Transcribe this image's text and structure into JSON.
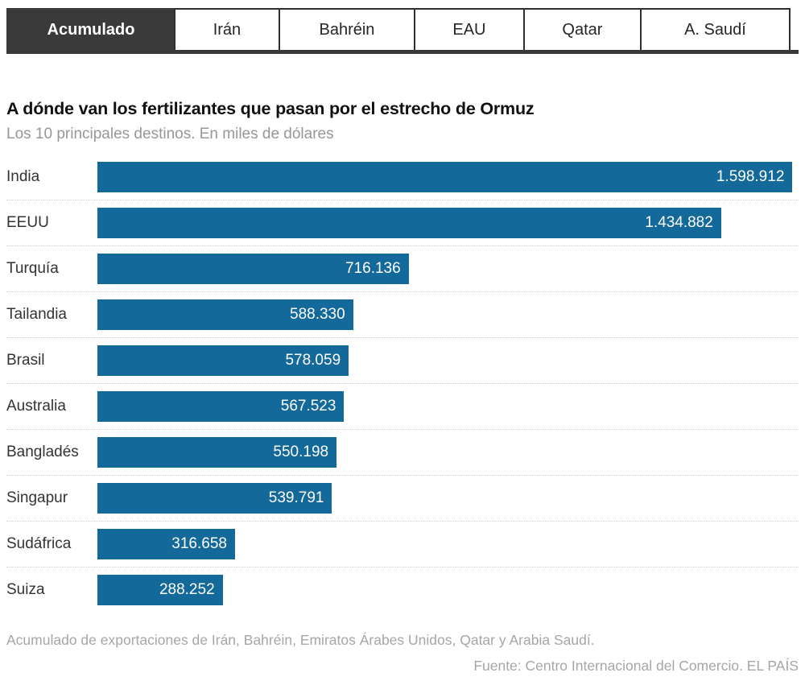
{
  "tabs": {
    "items": [
      {
        "label": "Acumulado",
        "active": true
      },
      {
        "label": "Irán",
        "active": false
      },
      {
        "label": "Bahréin",
        "active": false
      },
      {
        "label": "EAU",
        "active": false
      },
      {
        "label": "Qatar",
        "active": false
      },
      {
        "label": "A. Saudí",
        "active": false
      }
    ]
  },
  "chart_data": {
    "type": "bar",
    "orientation": "horizontal",
    "title": "A dónde van los fertilizantes que pasan por el estrecho de Ormuz",
    "subtitle": "Los 10 principales destinos. En miles de dólares",
    "unit": "miles de dólares",
    "categories": [
      "India",
      "EEUU",
      "Turquía",
      "Tailandia",
      "Brasil",
      "Australia",
      "Bangladés",
      "Singapur",
      "Sudáfrica",
      "Suiza"
    ],
    "values": [
      1598912,
      1434882,
      716136,
      588330,
      578059,
      567523,
      550198,
      539791,
      316658,
      288252
    ],
    "value_labels": [
      "1.598.912",
      "1.434.882",
      "716.136",
      "588.330",
      "578.059",
      "567.523",
      "550.198",
      "539.791",
      "316.658",
      "288.252"
    ],
    "xlim": [
      0,
      1613000
    ],
    "grid": "off",
    "legend": "none",
    "value_label_position": "inside-end",
    "bar_color": "#14699b"
  },
  "footer": {
    "note": "Acumulado de exportaciones de Irán, Bahréin, Emiratos Árabes Unidos, Qatar y Arabia Saudí.",
    "source": "Fuente: Centro Internacional del Comercio. EL PAÍS"
  },
  "colors": {
    "bar": "#14699b",
    "tab_active_bg": "#3a3a3a",
    "tab_border": "#2f2f2f",
    "separator": "#cfcfcf"
  }
}
